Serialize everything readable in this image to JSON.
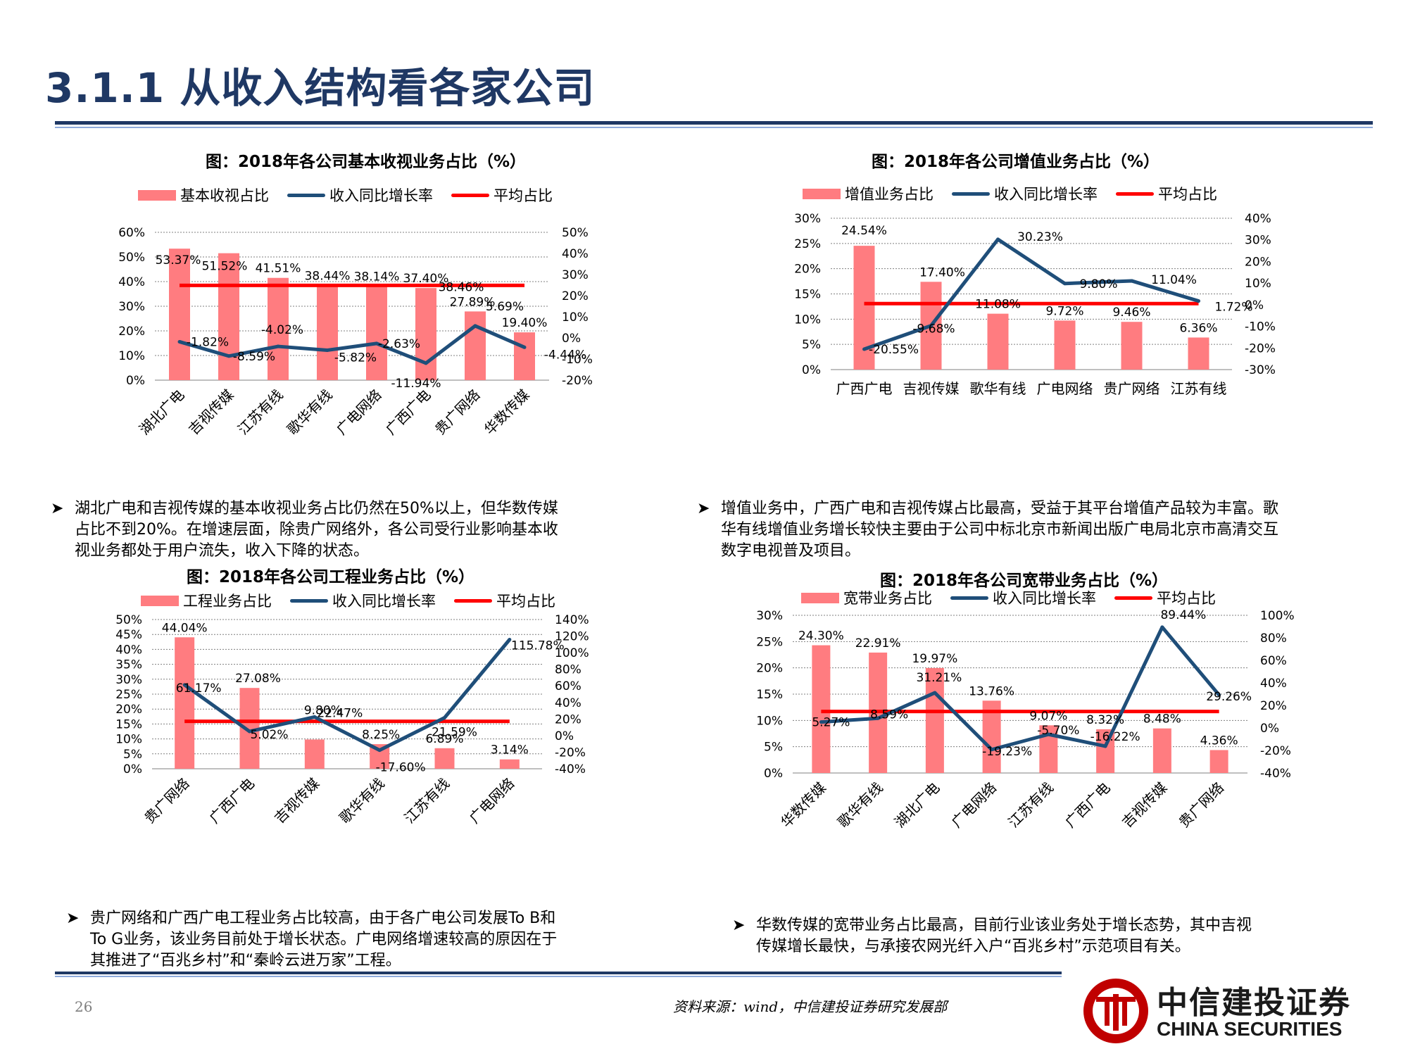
{
  "page": {
    "title": "3.1.1 从收入结构看各家公司",
    "page_number": "26",
    "source": "资料来源：wind，中信建投证券研究发展部",
    "logo": {
      "cn": "中信建投证券",
      "en": "CHINA SECURITIES"
    }
  },
  "colors": {
    "bar": "#ff7c80",
    "growth_line": "#1f4e79",
    "avg_line": "#ff0000",
    "brand": "#1f3864",
    "logo_red": "#c00000"
  },
  "bullets": {
    "b1": [
      "湖北广电和吉视传媒的基本收视业务占比仍然在50%以上，但华数传媒",
      "占比不到20%。在增速层面，除贵广网络外，各公司受行业影响基本收",
      "视业务都处于用户流失，收入下降的状态。"
    ],
    "b2": [
      "增值业务中，广西广电和吉视传媒占比最高，受益于其平台增值产品较为丰富。歌",
      "华有线增值业务增长较快主要由于公司中标北京市新闻出版广电局北京市高清交互",
      "数字电视普及项目。"
    ],
    "b3": [
      "贵广网络和广西广电工程业务占比较高，由于各广电公司发展To B和",
      "To G业务，该业务目前处于增长状态。广电网络增速较高的原因在于",
      "其推进了“百兆乡村”和“秦岭云进万家”工程。"
    ],
    "b4": [
      "华数传媒的宽带业务占比最高，目前行业该业务处于增长态势，其中吉视",
      "传媒增长最快，与承接农网光纤入户“百兆乡村”示范项目有关。"
    ]
  },
  "chart_data": [
    {
      "type": "bar",
      "title": "图：2018年各公司基本收视业务占比（%）",
      "categories": [
        "湖北广电",
        "吉视传媒",
        "江苏有线",
        "歌华有线",
        "广电网络",
        "广西广电",
        "贵广网络",
        "华数传媒"
      ],
      "series": [
        {
          "name": "基本收视占比",
          "type": "bar",
          "axis": "left",
          "values": [
            53.37,
            51.52,
            41.51,
            38.44,
            38.14,
            37.4,
            27.89,
            19.4
          ],
          "labels": [
            "53.37%",
            "51.52%",
            "41.51%",
            "38.44%",
            "38.14%",
            "37.40%",
            "27.89%",
            "19.40%"
          ]
        },
        {
          "name": "收入同比增长率",
          "type": "line",
          "axis": "right",
          "values": [
            -1.82,
            -8.59,
            -4.02,
            -5.82,
            -2.63,
            -11.94,
            5.69,
            -4.44
          ],
          "labels": [
            "-1.82%",
            "-8.59%",
            "-4.02%",
            "-5.82%",
            "-2.63%",
            "-11.94%",
            "5.69%",
            "-4.44%"
          ]
        },
        {
          "name": "平均占比",
          "type": "line",
          "axis": "left",
          "values": [
            38.46,
            38.46,
            38.46,
            38.46,
            38.46,
            38.46,
            38.46,
            38.46
          ],
          "labels": [
            "38.46%"
          ]
        }
      ],
      "y_left": {
        "ticks": [
          "0%",
          "10%",
          "20%",
          "30%",
          "40%",
          "50%",
          "60%"
        ],
        "range": [
          0,
          60
        ]
      },
      "y_right": {
        "ticks": [
          "-20%",
          "-10%",
          "0%",
          "10%",
          "20%",
          "30%",
          "40%",
          "50%"
        ],
        "range": [
          -20,
          50
        ]
      },
      "rotated_x": true,
      "grid": true,
      "legend": "top"
    },
    {
      "type": "bar",
      "title": "图：2018年各公司增值业务占比（%）",
      "categories": [
        "广西广电",
        "吉视传媒",
        "歌华有线",
        "广电网络",
        "贵广网络",
        "江苏有线"
      ],
      "series": [
        {
          "name": "增值业务占比",
          "type": "bar",
          "axis": "left",
          "values": [
            24.54,
            17.4,
            11.08,
            9.72,
            9.46,
            6.36
          ],
          "labels": [
            "24.54%",
            "17.40%",
            "11.08%",
            "9.72%",
            "9.46%",
            "6.36%"
          ]
        },
        {
          "name": "收入同比增长率",
          "type": "line",
          "axis": "right",
          "values": [
            -20.55,
            -9.68,
            30.23,
            9.8,
            11.04,
            1.72
          ],
          "labels": [
            "-20.55%",
            "-9.68%",
            "30.23%",
            "9.80%",
            "11.04%",
            "1.72%"
          ]
        },
        {
          "name": "平均占比",
          "type": "line",
          "axis": "left",
          "values": [
            13.09,
            13.09,
            13.09,
            13.09,
            13.09,
            13.09
          ],
          "labels": []
        }
      ],
      "y_left": {
        "ticks": [
          "0%",
          "5%",
          "10%",
          "15%",
          "20%",
          "25%",
          "30%"
        ],
        "range": [
          0,
          30
        ]
      },
      "y_right": {
        "ticks": [
          "-30%",
          "-20%",
          "-10%",
          "0%",
          "10%",
          "20%",
          "30%",
          "40%"
        ],
        "range": [
          -30,
          40
        ]
      },
      "rotated_x": false,
      "grid": true,
      "legend": "top"
    },
    {
      "type": "bar",
      "title": "图：2018年各公司工程业务占比（%）",
      "categories": [
        "贵广网络",
        "广西广电",
        "吉视传媒",
        "歌华有线",
        "江苏有线",
        "广电网络"
      ],
      "series": [
        {
          "name": "工程业务占比",
          "type": "bar",
          "axis": "left",
          "values": [
            44.04,
            27.08,
            9.8,
            8.25,
            6.89,
            3.14
          ],
          "labels": [
            "44.04%",
            "27.08%",
            "9.80%",
            "8.25%",
            "6.89%",
            "3.14%"
          ]
        },
        {
          "name": "收入同比增长率",
          "type": "line",
          "axis": "right",
          "values": [
            61.17,
            5.02,
            22.47,
            -17.6,
            21.59,
            115.78
          ],
          "labels": [
            "61.17%",
            "5.02%",
            "22.47%",
            "-17.60%",
            "21.59%",
            "115.78%"
          ]
        },
        {
          "name": "平均占比",
          "type": "line",
          "axis": "left",
          "values": [
            15.9,
            15.9,
            15.9,
            15.9,
            15.9,
            15.9
          ],
          "labels": []
        }
      ],
      "y_left": {
        "ticks": [
          "0%",
          "5%",
          "10%",
          "15%",
          "20%",
          "25%",
          "30%",
          "35%",
          "40%",
          "45%",
          "50%"
        ],
        "range": [
          0,
          50
        ]
      },
      "y_right": {
        "ticks": [
          "-40%",
          "-20%",
          "0%",
          "20%",
          "40%",
          "60%",
          "80%",
          "100%",
          "120%",
          "140%"
        ],
        "range": [
          -40,
          140
        ]
      },
      "rotated_x": true,
      "grid": true,
      "legend": "top"
    },
    {
      "type": "bar",
      "title": "图：2018年各公司宽带业务占比（%）",
      "categories": [
        "华数传媒",
        "歌华有线",
        "湖北广电",
        "广电网络",
        "江苏有线",
        "广西广电",
        "吉视传媒",
        "贵广网络"
      ],
      "series": [
        {
          "name": "宽带业务占比",
          "type": "bar",
          "axis": "left",
          "values": [
            24.3,
            22.91,
            19.97,
            13.76,
            9.07,
            8.32,
            8.48,
            4.36
          ],
          "labels": [
            "24.30%",
            "22.91%",
            "19.97%",
            "13.76%",
            "9.07%",
            "8.32%",
            "8.48%",
            "4.36%"
          ]
        },
        {
          "name": "收入同比增长率",
          "type": "line",
          "axis": "right",
          "values": [
            5.27,
            8.59,
            31.21,
            -19.23,
            -5.7,
            -16.22,
            89.44,
            29.26
          ],
          "labels": [
            "5.27%",
            "8.59%",
            "31.21%",
            "-19.23%",
            "-5.70%",
            "-16.22%",
            "89.44%",
            "29.26%"
          ]
        },
        {
          "name": "平均占比",
          "type": "line",
          "axis": "left",
          "values": [
            11.7,
            11.7,
            11.7,
            11.7,
            11.7,
            11.7,
            11.7,
            11.7
          ],
          "labels": []
        }
      ],
      "y_left": {
        "ticks": [
          "0%",
          "5%",
          "10%",
          "15%",
          "20%",
          "25%",
          "30%"
        ],
        "range": [
          0,
          30
        ]
      },
      "y_right": {
        "ticks": [
          "-40%",
          "-20%",
          "0%",
          "20%",
          "40%",
          "60%",
          "80%",
          "100%"
        ],
        "range": [
          -40,
          100
        ]
      },
      "rotated_x": true,
      "grid": true,
      "legend": "top"
    }
  ]
}
